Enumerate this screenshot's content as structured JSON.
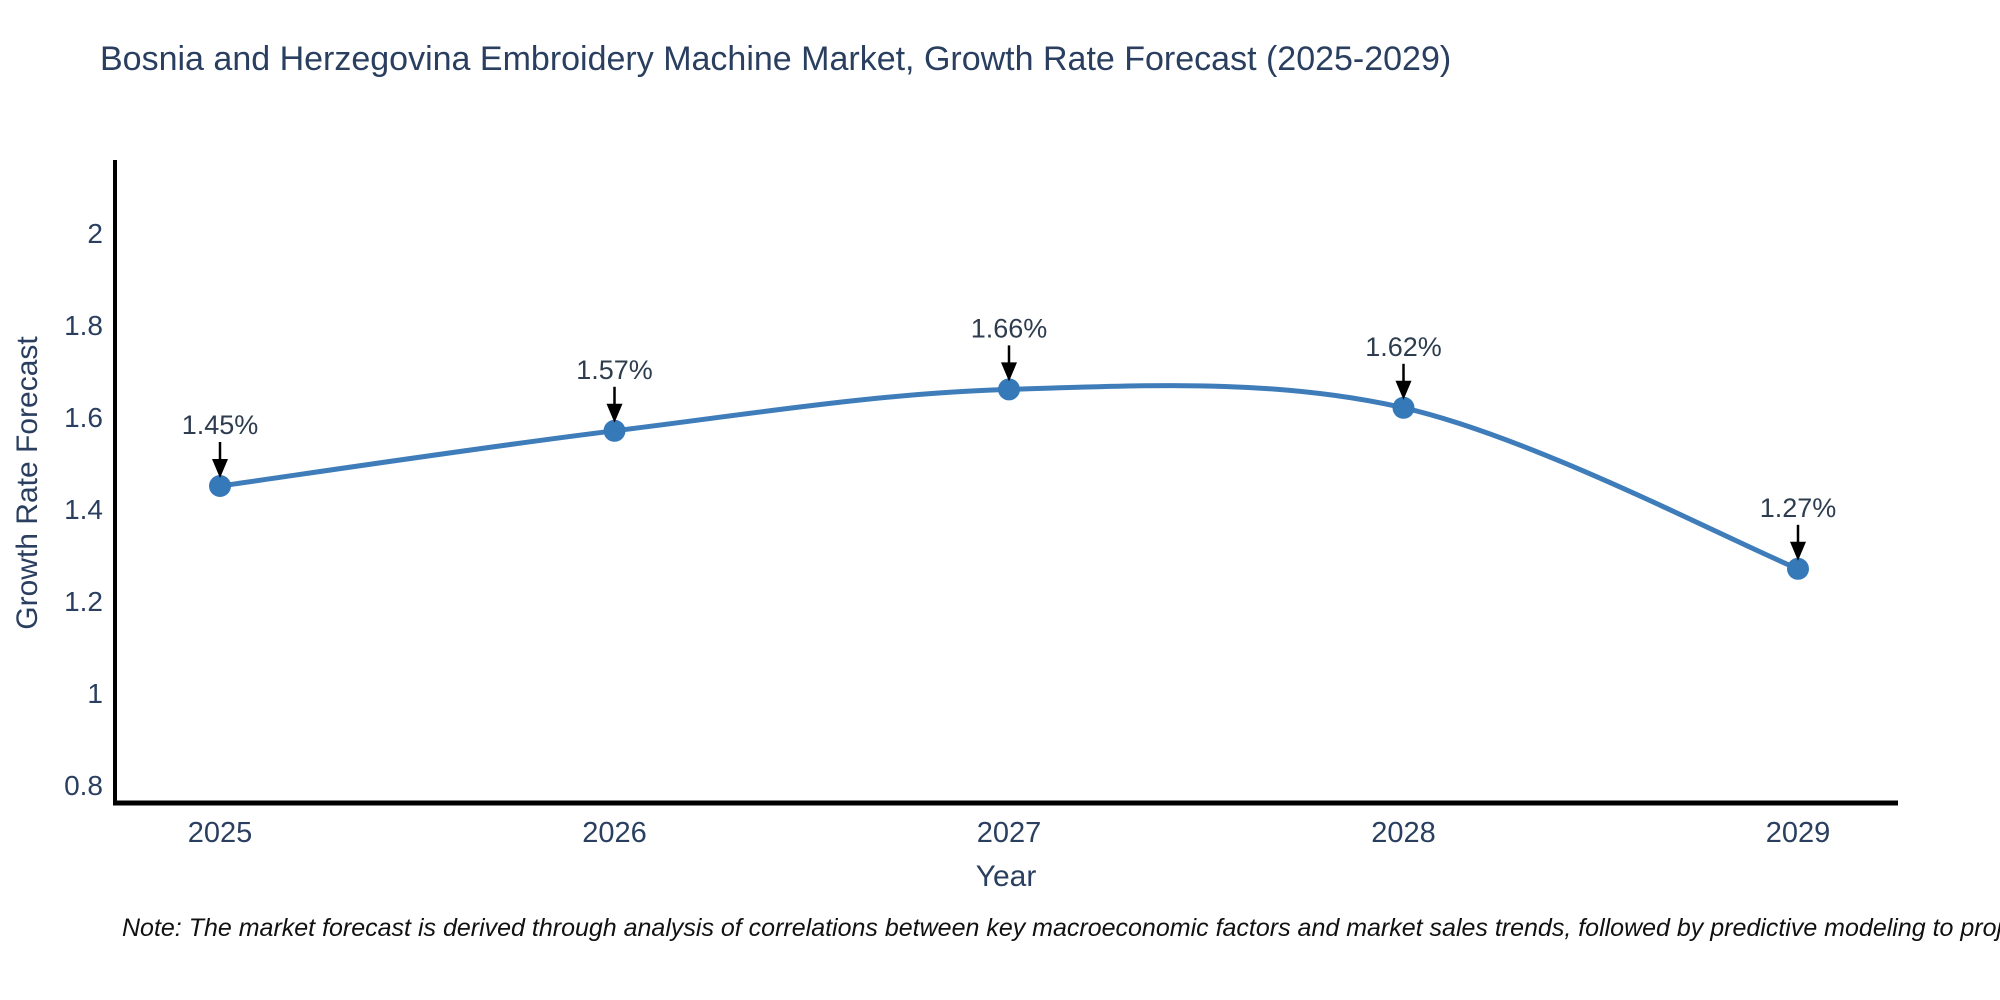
{
  "title": "Bosnia and Herzegovina Embroidery Machine Market, Growth Rate Forecast (2025-2029)",
  "note": "Note: The market forecast is derived through analysis of correlations between key macroeconomic factors and market sales trends, followed by predictive modeling to project future sales",
  "chart_data": {
    "type": "line",
    "title": "Bosnia and Herzegovina Embroidery Machine Market, Growth Rate Forecast (2025-2029)",
    "xlabel": "Year",
    "ylabel": "Growth Rate Forecast",
    "x": [
      2025,
      2026,
      2027,
      2028,
      2029
    ],
    "values": [
      1.45,
      1.57,
      1.66,
      1.62,
      1.27
    ],
    "point_labels": [
      "1.45%",
      "1.57%",
      "1.66%",
      "1.62%",
      "1.27%"
    ],
    "xticks": [
      "2025",
      "2026",
      "2027",
      "2028",
      "2029"
    ],
    "yticks": [
      "0.8",
      "1",
      "1.2",
      "1.4",
      "1.6",
      "1.8",
      "2"
    ],
    "ylim": [
      0.76,
      2.16
    ],
    "xlim": [
      2024.73,
      2029.25
    ],
    "line_shape": "spline",
    "grid": false,
    "legend_position": "none",
    "colors": {
      "line": "#3e7db9",
      "marker": "#3679b8",
      "axis": "#000000",
      "text": "#2a3f5f",
      "annotation_text": "#2d3c4e",
      "arrow": "#000000",
      "background": "#ffffff"
    }
  }
}
